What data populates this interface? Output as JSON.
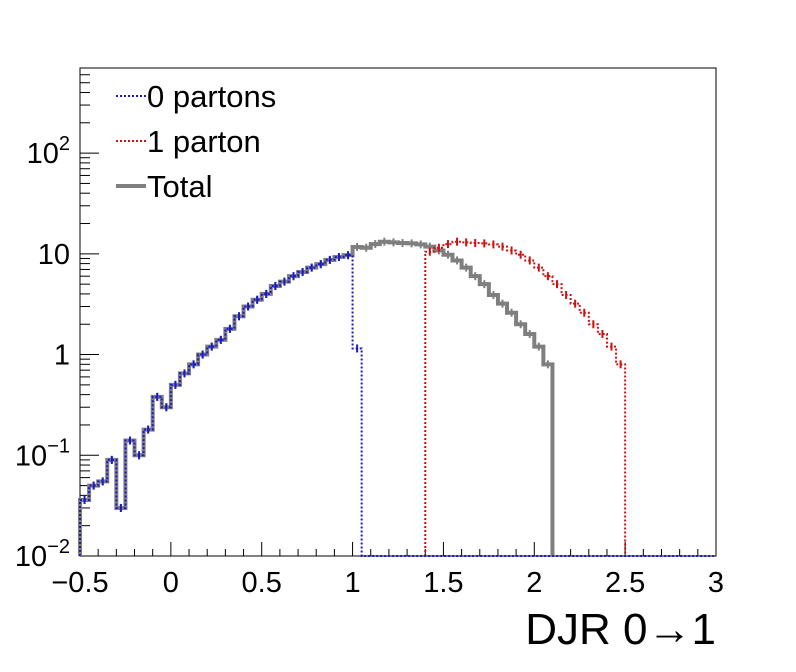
{
  "chart_data": {
    "type": "histogram",
    "xlabel": "DJR 0→1",
    "ylabel": "",
    "title": "",
    "xlim": [
      -0.5,
      3.0
    ],
    "ylim": [
      0.01,
      700
    ],
    "yscale": "log",
    "bin_width": 0.05,
    "x_ticks": [
      {
        "value": -0.5,
        "label": "−0.5"
      },
      {
        "value": 0,
        "label": "0"
      },
      {
        "value": 0.5,
        "label": "0.5"
      },
      {
        "value": 1,
        "label": "1"
      },
      {
        "value": 1.5,
        "label": "1.5"
      },
      {
        "value": 2,
        "label": "2"
      },
      {
        "value": 2.5,
        "label": "2.5"
      },
      {
        "value": 3,
        "label": "3"
      }
    ],
    "y_ticks": [
      {
        "value": 0.01,
        "base": "10",
        "exp": "−2"
      },
      {
        "value": 0.1,
        "base": "10",
        "exp": "−1"
      },
      {
        "value": 1,
        "base": "1",
        "exp": ""
      },
      {
        "value": 10,
        "base": "10",
        "exp": ""
      },
      {
        "value": 100,
        "base": "10",
        "exp": "2"
      }
    ],
    "legend_position": "top-left",
    "grid": false,
    "series": [
      {
        "name": "0 partons",
        "color": "#1a1acc",
        "style": "dotted",
        "x_start": -0.5,
        "values": [
          0.036,
          0.05,
          0.055,
          0.09,
          0.03,
          0.14,
          0.1,
          0.18,
          0.38,
          0.3,
          0.5,
          0.65,
          0.8,
          1.0,
          1.2,
          1.4,
          1.8,
          2.4,
          3.0,
          3.5,
          4.0,
          4.8,
          5.3,
          6.0,
          6.6,
          7.3,
          7.9,
          8.7,
          9.3,
          9.7,
          1.15,
          0.01,
          0.01,
          0.01,
          0.01,
          0.01,
          0.01,
          0.01,
          0.01,
          0.01,
          0.01,
          0.01,
          0.01,
          0.01,
          0.01,
          0.01,
          0.01,
          0.01,
          0.01,
          0.01,
          0.01,
          0.01,
          0.01,
          0.01,
          0.01,
          0.01,
          0.01,
          0.01,
          0.01,
          0.01,
          0.01,
          0.01,
          0.01,
          0.01,
          0.01,
          0.01,
          0.01,
          0.01,
          0.01,
          0.01
        ]
      },
      {
        "name": "1 parton",
        "color": "#d01010",
        "style": "dotted",
        "x_start": 1.4,
        "values": [
          10.5,
          11.5,
          12.5,
          13.2,
          13.0,
          12.8,
          12.7,
          12.4,
          11.8,
          10.8,
          9.8,
          8.6,
          7.3,
          6.0,
          5.0,
          3.9,
          3.2,
          2.6,
          2.0,
          1.6,
          1.2,
          0.8
        ]
      },
      {
        "name": "Total",
        "color": "#7f7f7f",
        "style": "solid",
        "x_start": -0.5,
        "values": [
          0.036,
          0.05,
          0.055,
          0.09,
          0.03,
          0.14,
          0.1,
          0.18,
          0.38,
          0.3,
          0.5,
          0.65,
          0.8,
          1.0,
          1.2,
          1.4,
          1.8,
          2.4,
          3.0,
          3.5,
          4.0,
          4.8,
          5.3,
          6.0,
          6.6,
          7.3,
          7.9,
          8.7,
          9.3,
          9.7,
          11.7,
          11.5,
          12.5,
          13.2,
          13.0,
          12.8,
          12.7,
          12.4,
          11.8,
          10.8,
          9.8,
          8.6,
          7.3,
          6.0,
          5.0,
          3.9,
          3.2,
          2.6,
          2.0,
          1.6,
          1.2,
          0.8
        ]
      }
    ]
  }
}
